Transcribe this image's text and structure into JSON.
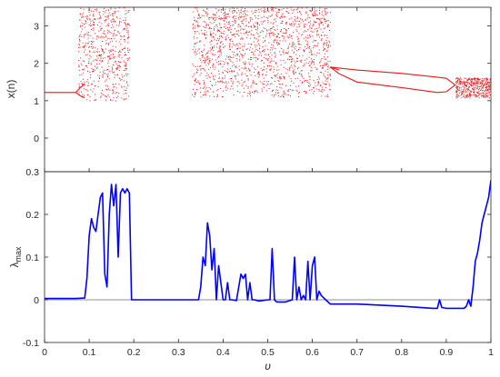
{
  "chart_data": [
    {
      "type": "scatter",
      "title": "",
      "xlabel": "",
      "ylabel": "x(n)",
      "xlim": [
        0,
        1
      ],
      "ylim": [
        -0.9,
        3.5
      ],
      "x_ticks": [
        0,
        0.1,
        0.2,
        0.3,
        0.4,
        0.5,
        0.6,
        0.7,
        0.8,
        0.9,
        1
      ],
      "y_ticks": [
        0,
        1,
        2,
        3
      ],
      "y_tick_labels": [
        "0",
        "1",
        "2",
        "3"
      ],
      "color": "#e41a1c",
      "grid": false,
      "stable_branches": [
        {
          "x": [
            0,
            0.03,
            0.06,
            0.07
          ],
          "y": [
            1.22,
            1.22,
            1.22,
            1.22
          ]
        },
        {
          "x": [
            0.07,
            0.08,
            0.09
          ],
          "y": [
            1.22,
            1.35,
            1.45
          ]
        },
        {
          "x": [
            0.07,
            0.08,
            0.09
          ],
          "y": [
            1.22,
            1.13,
            1.08
          ]
        },
        {
          "x": [
            0.64,
            0.7,
            0.8,
            0.88
          ],
          "y": [
            1.9,
            1.82,
            1.73,
            1.63
          ]
        },
        {
          "x": [
            0.64,
            0.66,
            0.7,
            0.8,
            0.88
          ],
          "y": [
            1.9,
            1.72,
            1.5,
            1.35,
            1.22
          ]
        },
        {
          "x": [
            0.64,
            0.66
          ],
          "y": [
            1.9,
            1.82
          ]
        },
        {
          "x": [
            0.88,
            0.9,
            0.92
          ],
          "y": [
            1.63,
            1.6,
            1.42
          ]
        },
        {
          "x": [
            0.88,
            0.9,
            0.92
          ],
          "y": [
            1.22,
            1.24,
            1.42
          ]
        }
      ],
      "chaotic_bands": [
        {
          "x0": 0.075,
          "x1": 0.19,
          "ymin": 1.0,
          "ymax": 3.5
        },
        {
          "x0": 0.33,
          "x1": 0.37,
          "ymin": 1.1,
          "ymax": 3.5
        },
        {
          "x0": 0.37,
          "x1": 0.64,
          "ymin": 1.1,
          "ymax": 3.5
        },
        {
          "x0": 0.92,
          "x1": 1.0,
          "ymin": 1.08,
          "ymax": 1.62
        }
      ]
    },
    {
      "type": "line",
      "title": "",
      "xlabel": "υ",
      "ylabel": "λ_max",
      "xlim": [
        0,
        1
      ],
      "ylim": [
        -0.1,
        0.3
      ],
      "x_ticks": [
        0,
        0.1,
        0.2,
        0.3,
        0.4,
        0.5,
        0.6,
        0.7,
        0.8,
        0.9,
        1
      ],
      "x_tick_labels": [
        "0",
        "0.1",
        "0.2",
        "0.3",
        "0.4",
        "0.5",
        "0.6",
        "0.7",
        "0.8",
        "0.9",
        "1"
      ],
      "y_ticks": [
        -0.1,
        0,
        0.1,
        0.2,
        0.3
      ],
      "y_tick_labels": [
        "-0.1",
        "0",
        "0.1",
        "0.2",
        "0.3"
      ],
      "color": "#0000ff",
      "reference_line_y": 0,
      "grid": false,
      "x": [
        0,
        0.03,
        0.07,
        0.09,
        0.095,
        0.1,
        0.105,
        0.11,
        0.115,
        0.12,
        0.125,
        0.13,
        0.135,
        0.14,
        0.145,
        0.15,
        0.155,
        0.16,
        0.165,
        0.17,
        0.175,
        0.18,
        0.185,
        0.19,
        0.195,
        0.25,
        0.3,
        0.34,
        0.345,
        0.35,
        0.355,
        0.36,
        0.365,
        0.37,
        0.375,
        0.38,
        0.385,
        0.39,
        0.4,
        0.405,
        0.41,
        0.415,
        0.42,
        0.43,
        0.44,
        0.445,
        0.45,
        0.455,
        0.46,
        0.465,
        0.47,
        0.48,
        0.5,
        0.505,
        0.51,
        0.515,
        0.52,
        0.54,
        0.555,
        0.56,
        0.565,
        0.57,
        0.575,
        0.58,
        0.585,
        0.59,
        0.595,
        0.6,
        0.605,
        0.61,
        0.615,
        0.62,
        0.63,
        0.64,
        0.65,
        0.7,
        0.8,
        0.87,
        0.88,
        0.885,
        0.89,
        0.9,
        0.94,
        0.945,
        0.95,
        0.955,
        0.96,
        0.965,
        0.97,
        0.975,
        0.98,
        0.985,
        0.99,
        0.995,
        1.0
      ],
      "y": [
        0.003,
        0.003,
        0.003,
        0.004,
        0.05,
        0.15,
        0.19,
        0.17,
        0.16,
        0.2,
        0.24,
        0.25,
        0.06,
        0.03,
        0.2,
        0.27,
        0.22,
        0.27,
        0.1,
        0.25,
        0.26,
        0.25,
        0.26,
        0.25,
        0.0,
        0.0,
        0.0,
        0.0,
        0.0,
        0.03,
        0.1,
        0.08,
        0.18,
        0.15,
        0.07,
        0.12,
        0.0,
        0.08,
        0.0,
        0.0,
        0.04,
        0.0,
        0.0,
        -0.002,
        0.06,
        0.05,
        0.06,
        0.0,
        0.04,
        0.0,
        0.0,
        -0.003,
        0.0,
        0.0,
        0.12,
        0.0,
        -0.005,
        -0.005,
        0.0,
        0.1,
        0.0,
        0.03,
        0.0,
        0.01,
        0.0,
        0.09,
        0.0,
        0.08,
        0.1,
        0.0,
        0.02,
        0.01,
        0.0,
        -0.01,
        -0.01,
        -0.01,
        -0.015,
        -0.02,
        -0.02,
        0.0,
        -0.018,
        -0.02,
        -0.02,
        -0.015,
        0.0,
        -0.015,
        0.03,
        0.09,
        0.11,
        0.14,
        0.18,
        0.2,
        0.22,
        0.24,
        0.28
      ]
    }
  ]
}
